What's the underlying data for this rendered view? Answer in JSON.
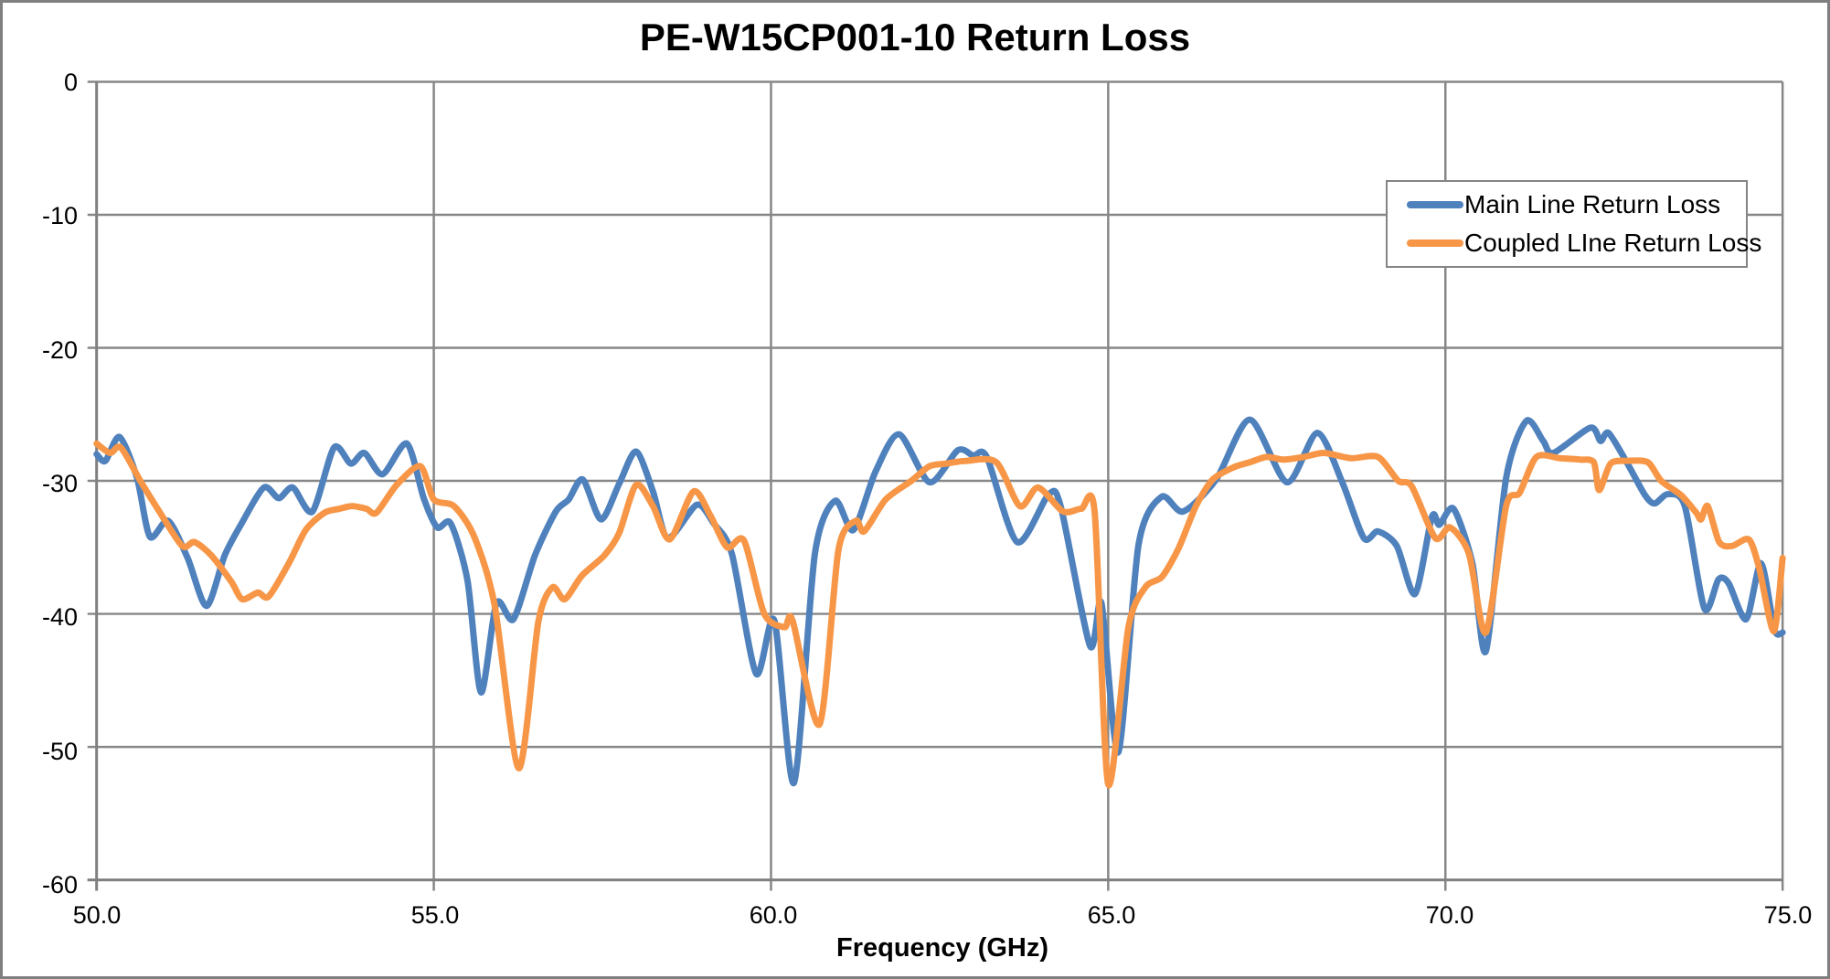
{
  "chart_data": {
    "type": "line",
    "title": "PE-W15CP001-10 Return Loss",
    "xlabel": "Frequency (GHz)",
    "ylabel": "",
    "xlim": [
      50,
      75
    ],
    "ylim": [
      -60,
      0
    ],
    "x_ticks": [
      50,
      55,
      60,
      65,
      70,
      75
    ],
    "x_tick_labels": [
      "50.0",
      "55.0",
      "60.0",
      "65.0",
      "70.0",
      "75.0"
    ],
    "y_ticks": [
      0,
      -10,
      -20,
      -30,
      -40,
      -50,
      -60
    ],
    "y_tick_labels": [
      "0",
      "-10",
      "-20",
      "-30",
      "-40",
      "-50",
      "-60"
    ],
    "grid": true,
    "grid_color": "#878787",
    "axis_color": "#808080",
    "background_color": "#ffffff",
    "legend_position": "upper right",
    "series": [
      {
        "name": "Main Line Return Loss",
        "color": "#4F81BD",
        "points": [
          [
            50.0,
            -28.0
          ],
          [
            50.13,
            -28.5
          ],
          [
            50.34,
            -26.7
          ],
          [
            50.6,
            -29.8
          ],
          [
            50.79,
            -34.2
          ],
          [
            51.06,
            -33.0
          ],
          [
            51.35,
            -35.8
          ],
          [
            51.63,
            -39.4
          ],
          [
            51.9,
            -35.6
          ],
          [
            52.15,
            -33.2
          ],
          [
            52.48,
            -30.5
          ],
          [
            52.7,
            -31.3
          ],
          [
            52.91,
            -30.5
          ],
          [
            53.2,
            -32.3
          ],
          [
            53.52,
            -27.5
          ],
          [
            53.77,
            -28.7
          ],
          [
            53.97,
            -27.9
          ],
          [
            54.24,
            -29.5
          ],
          [
            54.6,
            -27.2
          ],
          [
            54.85,
            -31.3
          ],
          [
            55.05,
            -33.5
          ],
          [
            55.25,
            -33.2
          ],
          [
            55.5,
            -37.5
          ],
          [
            55.7,
            -45.9
          ],
          [
            55.93,
            -39.2
          ],
          [
            56.18,
            -40.4
          ],
          [
            56.5,
            -35.6
          ],
          [
            56.81,
            -32.3
          ],
          [
            57.0,
            -31.4
          ],
          [
            57.21,
            -29.9
          ],
          [
            57.48,
            -32.9
          ],
          [
            57.75,
            -30.2
          ],
          [
            58.0,
            -27.8
          ],
          [
            58.25,
            -30.8
          ],
          [
            58.47,
            -34.3
          ],
          [
            58.9,
            -31.8
          ],
          [
            59.15,
            -33.2
          ],
          [
            59.42,
            -35.5
          ],
          [
            59.78,
            -44.5
          ],
          [
            60.05,
            -40.5
          ],
          [
            60.34,
            -52.7
          ],
          [
            60.65,
            -35.5
          ],
          [
            60.95,
            -31.5
          ],
          [
            61.22,
            -33.7
          ],
          [
            61.55,
            -29.3
          ],
          [
            61.9,
            -26.5
          ],
          [
            62.35,
            -30.1
          ],
          [
            62.77,
            -27.7
          ],
          [
            63.0,
            -28.1
          ],
          [
            63.2,
            -28.2
          ],
          [
            63.65,
            -34.6
          ],
          [
            64.12,
            -31.0
          ],
          [
            64.3,
            -32.0
          ],
          [
            64.73,
            -42.4
          ],
          [
            64.9,
            -39.2
          ],
          [
            65.15,
            -50.4
          ],
          [
            65.45,
            -34.8
          ],
          [
            65.79,
            -31.2
          ],
          [
            66.11,
            -32.3
          ],
          [
            66.6,
            -29.9
          ],
          [
            67.1,
            -25.4
          ],
          [
            67.65,
            -30.1
          ],
          [
            68.1,
            -26.4
          ],
          [
            68.47,
            -30.1
          ],
          [
            68.79,
            -34.3
          ],
          [
            69.0,
            -33.8
          ],
          [
            69.28,
            -34.9
          ],
          [
            69.55,
            -38.5
          ],
          [
            69.8,
            -32.7
          ],
          [
            69.91,
            -33.3
          ],
          [
            70.12,
            -32.1
          ],
          [
            70.4,
            -36.2
          ],
          [
            70.6,
            -42.8
          ],
          [
            70.9,
            -29.8
          ],
          [
            71.2,
            -25.5
          ],
          [
            71.45,
            -27.0
          ],
          [
            71.6,
            -27.9
          ],
          [
            72.15,
            -26.0
          ],
          [
            72.3,
            -27.0
          ],
          [
            72.42,
            -26.4
          ],
          [
            72.7,
            -28.7
          ],
          [
            72.95,
            -31.0
          ],
          [
            73.1,
            -31.7
          ],
          [
            73.3,
            -31.0
          ],
          [
            73.55,
            -31.9
          ],
          [
            73.84,
            -39.6
          ],
          [
            74.05,
            -37.4
          ],
          [
            74.2,
            -37.7
          ],
          [
            74.46,
            -40.4
          ],
          [
            74.68,
            -36.2
          ],
          [
            74.88,
            -41.2
          ],
          [
            75.0,
            -41.4
          ]
        ]
      },
      {
        "name": "Coupled LIne Return Loss",
        "color": "#F79646",
        "points": [
          [
            50.0,
            -27.2
          ],
          [
            50.2,
            -27.9
          ],
          [
            50.36,
            -27.5
          ],
          [
            50.66,
            -30.1
          ],
          [
            50.93,
            -32.3
          ],
          [
            51.27,
            -34.9
          ],
          [
            51.45,
            -34.6
          ],
          [
            51.7,
            -35.6
          ],
          [
            52.0,
            -37.6
          ],
          [
            52.16,
            -38.9
          ],
          [
            52.39,
            -38.4
          ],
          [
            52.55,
            -38.7
          ],
          [
            52.85,
            -36.2
          ],
          [
            53.1,
            -33.7
          ],
          [
            53.38,
            -32.4
          ],
          [
            53.6,
            -32.1
          ],
          [
            53.79,
            -31.9
          ],
          [
            54.0,
            -32.1
          ],
          [
            54.15,
            -32.4
          ],
          [
            54.45,
            -30.3
          ],
          [
            54.8,
            -28.9
          ],
          [
            55.0,
            -31.4
          ],
          [
            55.3,
            -31.9
          ],
          [
            55.6,
            -34.2
          ],
          [
            55.9,
            -39.3
          ],
          [
            56.26,
            -51.6
          ],
          [
            56.55,
            -40.6
          ],
          [
            56.76,
            -38.0
          ],
          [
            56.94,
            -38.9
          ],
          [
            57.2,
            -37.1
          ],
          [
            57.53,
            -35.6
          ],
          [
            57.75,
            -33.9
          ],
          [
            58.0,
            -30.3
          ],
          [
            58.25,
            -31.9
          ],
          [
            58.5,
            -34.4
          ],
          [
            58.85,
            -30.8
          ],
          [
            59.1,
            -32.6
          ],
          [
            59.35,
            -35.0
          ],
          [
            59.6,
            -34.5
          ],
          [
            59.9,
            -40.0
          ],
          [
            60.2,
            -41.0
          ],
          [
            60.32,
            -40.5
          ],
          [
            60.72,
            -48.3
          ],
          [
            61.0,
            -35.2
          ],
          [
            61.26,
            -33.0
          ],
          [
            61.38,
            -33.8
          ],
          [
            61.7,
            -31.4
          ],
          [
            62.08,
            -30.0
          ],
          [
            62.35,
            -28.9
          ],
          [
            62.6,
            -28.7
          ],
          [
            62.89,
            -28.5
          ],
          [
            63.34,
            -28.6
          ],
          [
            63.69,
            -31.9
          ],
          [
            63.96,
            -30.5
          ],
          [
            64.33,
            -32.3
          ],
          [
            64.6,
            -32.1
          ],
          [
            64.8,
            -32.4
          ],
          [
            65.0,
            -52.8
          ],
          [
            65.3,
            -41.0
          ],
          [
            65.55,
            -38.0
          ],
          [
            65.8,
            -37.2
          ],
          [
            66.05,
            -35.0
          ],
          [
            66.3,
            -31.9
          ],
          [
            66.55,
            -29.9
          ],
          [
            66.85,
            -29.0
          ],
          [
            67.1,
            -28.6
          ],
          [
            67.35,
            -28.2
          ],
          [
            67.6,
            -28.4
          ],
          [
            67.9,
            -28.2
          ],
          [
            68.2,
            -27.9
          ],
          [
            68.6,
            -28.3
          ],
          [
            69.0,
            -28.2
          ],
          [
            69.3,
            -30.0
          ],
          [
            69.5,
            -30.4
          ],
          [
            69.85,
            -34.3
          ],
          [
            70.07,
            -33.5
          ],
          [
            70.35,
            -35.5
          ],
          [
            70.6,
            -41.4
          ],
          [
            70.9,
            -31.9
          ],
          [
            71.1,
            -30.9
          ],
          [
            71.35,
            -28.2
          ],
          [
            71.7,
            -28.3
          ],
          [
            72.0,
            -28.4
          ],
          [
            72.2,
            -28.6
          ],
          [
            72.28,
            -30.7
          ],
          [
            72.45,
            -28.7
          ],
          [
            72.7,
            -28.5
          ],
          [
            73.0,
            -28.6
          ],
          [
            73.2,
            -30.0
          ],
          [
            73.5,
            -31.1
          ],
          [
            73.72,
            -32.4
          ],
          [
            73.79,
            -32.9
          ],
          [
            73.89,
            -31.9
          ],
          [
            74.06,
            -34.6
          ],
          [
            74.25,
            -34.9
          ],
          [
            74.5,
            -34.4
          ],
          [
            74.65,
            -36.5
          ],
          [
            74.87,
            -41.3
          ],
          [
            75.0,
            -35.8
          ]
        ]
      }
    ]
  }
}
